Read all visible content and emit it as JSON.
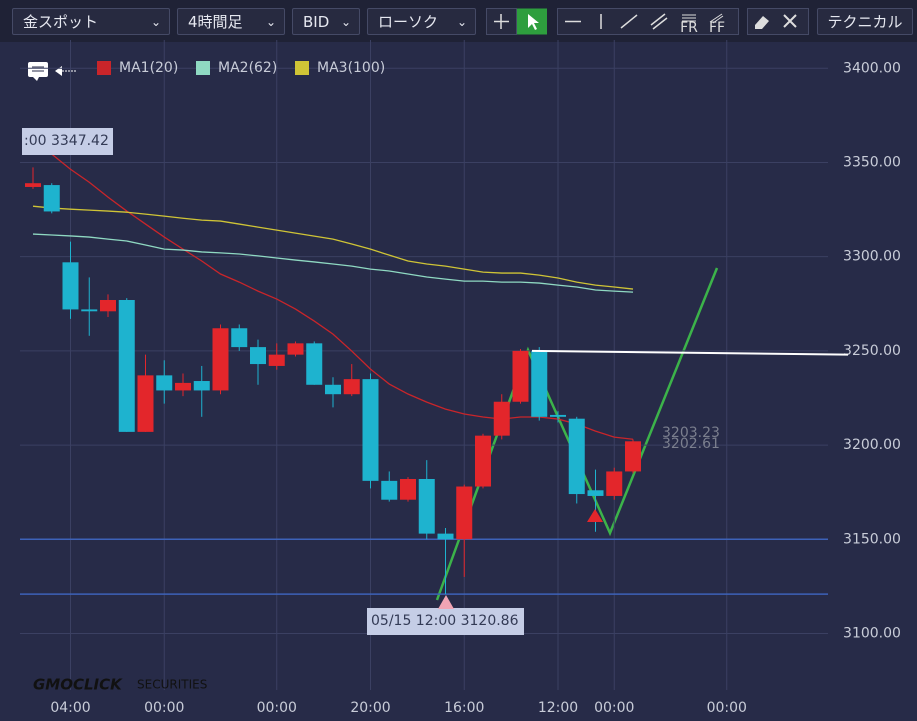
{
  "toolbar": {
    "symbol": "金スポット",
    "timeframe": "4時間足",
    "price_type": "BID",
    "chart_style": "ローソク",
    "technical": "テクニカル"
  },
  "logo": "GMOCLICK",
  "logo_sub": "SECURITIES",
  "chart_data": {
    "type": "candlestick",
    "categories": [
      null,
      null,
      "04:00",
      null,
      null,
      null,
      null,
      "00:00",
      null,
      null,
      null,
      null,
      null,
      "00:00",
      null,
      null,
      null,
      null,
      "20:00",
      null,
      null,
      null,
      null,
      "16:00",
      null,
      null,
      null,
      null,
      "12:00",
      null,
      null,
      "00:00",
      null,
      null,
      null,
      null,
      null,
      "00:00"
    ],
    "open": [
      3337,
      3338,
      3297,
      3272,
      3271,
      3277,
      3207,
      3237,
      3229,
      3234,
      3229,
      3262,
      3252,
      3242,
      3248,
      3254,
      3232,
      3227,
      3235,
      3181,
      3171,
      3182,
      3153,
      3150,
      3178,
      3205,
      3223,
      3250,
      3216,
      3214,
      3176,
      3173,
      3186,
      null,
      null,
      null,
      null,
      null
    ],
    "high": [
      3347.42,
      3339,
      3308,
      3289,
      3280,
      3278,
      3248,
      3245,
      3238,
      3242,
      3264,
      3264,
      3256,
      3254,
      3255,
      3255,
      3236,
      3243,
      3238,
      3186,
      3183,
      3192,
      3156,
      3179,
      3206,
      3227,
      3251,
      3252,
      3218,
      3215,
      3187,
      3188,
      3203,
      null,
      null,
      null,
      null,
      null
    ],
    "low": [
      3336,
      3323,
      3267,
      3258,
      3268,
      3207,
      3207,
      3222,
      3226,
      3215,
      3227,
      3250,
      3232,
      3240,
      3247,
      3232,
      3220,
      3226,
      3177,
      3170,
      3170,
      3150,
      3120.86,
      3130,
      3177,
      3203,
      3222,
      3213,
      3212,
      3169,
      3154,
      3171,
      3185,
      null,
      null,
      null,
      null,
      null
    ],
    "close": [
      3339,
      3324,
      3272,
      3271,
      3277,
      3207,
      3237,
      3229,
      3233,
      3229,
      3262,
      3252,
      3243,
      3248,
      3254,
      3232,
      3227,
      3235,
      3181,
      3171,
      3182,
      3153,
      3150,
      3178,
      3205,
      3223,
      3250,
      3215,
      3215,
      3174,
      3173,
      3186,
      3202,
      null,
      null,
      null,
      null,
      null
    ],
    "up_color": "#e3262b",
    "down_color": "#1eb3cf",
    "series": [
      {
        "name": "MA1(20)",
        "color": "#c9252a",
        "values": [
          3359.7,
          3354.4,
          3346.4,
          3339.5,
          3331.6,
          3324.2,
          3317.3,
          3310.4,
          3304,
          3297.7,
          3290.8,
          3286.5,
          3281.7,
          3277.5,
          3272.2,
          3265.8,
          3258.9,
          3249.9,
          3240.3,
          3232.4,
          3227.1,
          3222.8,
          3219.1,
          3216.5,
          3214.9,
          3213.8,
          3214.9,
          3214.9,
          3213.8,
          3211.2,
          3207.4,
          3204.2,
          3203.1,
          null,
          null,
          null,
          null,
          null
        ]
      },
      {
        "name": "MA2(62)",
        "color": "#8fd9c2",
        "values": [
          3312,
          3311.5,
          3311,
          3310.4,
          3309.3,
          3308.3,
          3306.2,
          3304,
          3303.5,
          3302.5,
          3302,
          3301.4,
          3300.4,
          3299.3,
          3298.2,
          3297.2,
          3296.1,
          3295,
          3293.4,
          3292.4,
          3290.8,
          3289.2,
          3288.1,
          3287,
          3287,
          3286.5,
          3286.5,
          3286,
          3284.9,
          3283.9,
          3282.3,
          3281.7,
          3281.2,
          null,
          null,
          null,
          null,
          null
        ]
      },
      {
        "name": "MA3(100)",
        "color": "#cfc436",
        "values": [
          3326.8,
          3325.8,
          3325.2,
          3324.7,
          3324.2,
          3323.6,
          3322.6,
          3321.5,
          3320.4,
          3319.4,
          3318.9,
          3317.3,
          3315.7,
          3314.1,
          3312.5,
          3310.9,
          3309.3,
          3306.7,
          3304,
          3300.8,
          3297.7,
          3296.1,
          3295,
          3293.4,
          3291.8,
          3291.3,
          3291.3,
          3290.2,
          3288.7,
          3286.5,
          3284.9,
          3283.9,
          3282.8,
          null,
          null,
          null,
          null,
          null
        ]
      }
    ],
    "ylim": [
      3070,
      3415
    ],
    "yticks": [
      {
        "value": 3100,
        "label": "3100.00"
      },
      {
        "value": 3150,
        "label": "3150.00"
      },
      {
        "value": 3200,
        "label": "3200.00"
      },
      {
        "value": 3250,
        "label": "3250.00"
      },
      {
        "value": 3300,
        "label": "3300.00"
      },
      {
        "value": 3350,
        "label": "3350.00"
      },
      {
        "value": 3400,
        "label": "3400.00"
      }
    ],
    "grid": true,
    "hlines": [
      {
        "value": 3150,
        "color": "#3d62b8"
      },
      {
        "value": 3120.86,
        "color": "#3d62b8"
      }
    ],
    "trend_line": {
      "color": "#ffffff",
      "values": [
        3250,
        3248
      ]
    },
    "high_label": ":00 3347.42",
    "low_label": "05/15 12:00 3120.86",
    "last_prices": [
      3203.23,
      3202.61
    ]
  }
}
